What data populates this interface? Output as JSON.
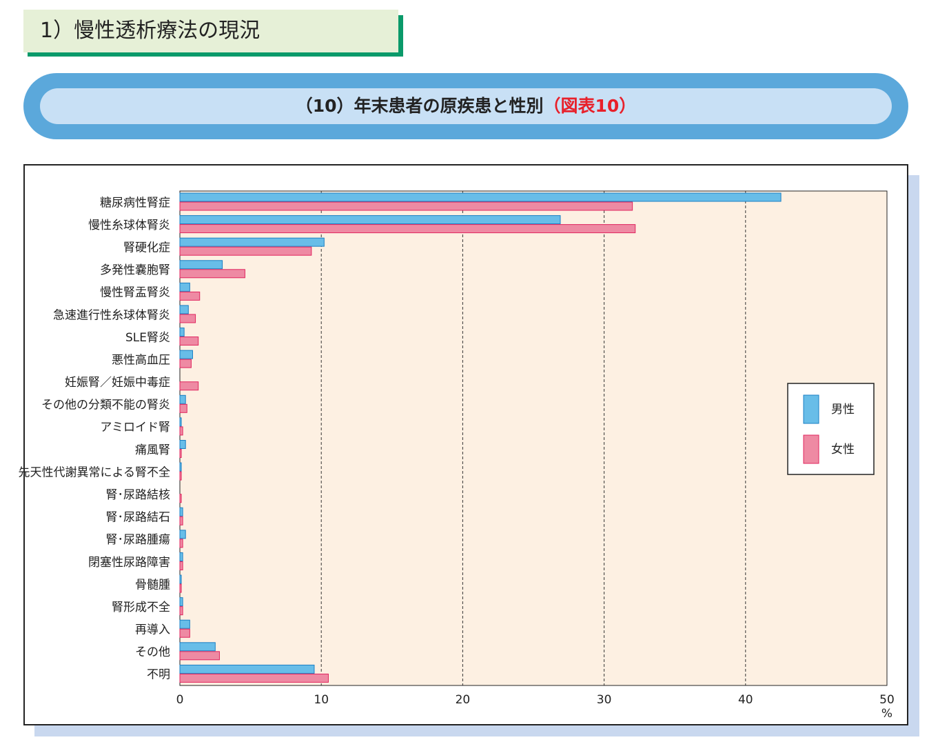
{
  "section_heading": "1）慢性透析療法の現況",
  "figure_title": {
    "main": "（10）年末患者の原疾患と性別",
    "ref": "（図表10）"
  },
  "colors": {
    "male": "#68bde8",
    "female": "#ee8aa3",
    "male_edge": "#1a7fc4",
    "female_edge": "#e0245e",
    "plot_bg": "#fdf0e2",
    "banner": "#5ba8db",
    "banner_inner": "#c8e0f5",
    "heading_bg": "#e6f0d7",
    "heading_rule": "#0a9a6a"
  },
  "chart_data": {
    "type": "bar",
    "orientation": "horizontal",
    "categories": [
      "糖尿病性腎症",
      "慢性糸球体腎炎",
      "腎硬化症",
      "多発性嚢胞腎",
      "慢性腎盂腎炎",
      "急速進行性糸球体腎炎",
      "SLE腎炎",
      "悪性高血圧",
      "妊娠腎／妊娠中毒症",
      "その他の分類不能の腎炎",
      "アミロイド腎",
      "痛風腎",
      "先天性代謝異常による腎不全",
      "腎･尿路結核",
      "腎･尿路結石",
      "腎･尿路腫瘍",
      "閉塞性尿路障害",
      "骨髄腫",
      "腎形成不全",
      "再導入",
      "その他",
      "不明"
    ],
    "series": [
      {
        "name": "男性",
        "values": [
          42.5,
          26.9,
          10.2,
          3.0,
          0.7,
          0.6,
          0.3,
          0.9,
          0.0,
          0.4,
          0.1,
          0.4,
          0.1,
          0.0,
          0.2,
          0.4,
          0.2,
          0.1,
          0.2,
          0.7,
          2.5,
          9.5
        ]
      },
      {
        "name": "女性",
        "values": [
          32.0,
          32.2,
          9.3,
          4.6,
          1.4,
          1.1,
          1.3,
          0.8,
          1.3,
          0.5,
          0.2,
          0.1,
          0.1,
          0.1,
          0.2,
          0.2,
          0.2,
          0.1,
          0.2,
          0.7,
          2.8,
          10.5
        ]
      }
    ],
    "xlim": [
      0,
      50
    ],
    "xticks": [
      "0",
      "10",
      "20",
      "30",
      "40",
      "50"
    ],
    "xunit": "%",
    "grid": "vertical dashed",
    "legend_position": "right"
  }
}
